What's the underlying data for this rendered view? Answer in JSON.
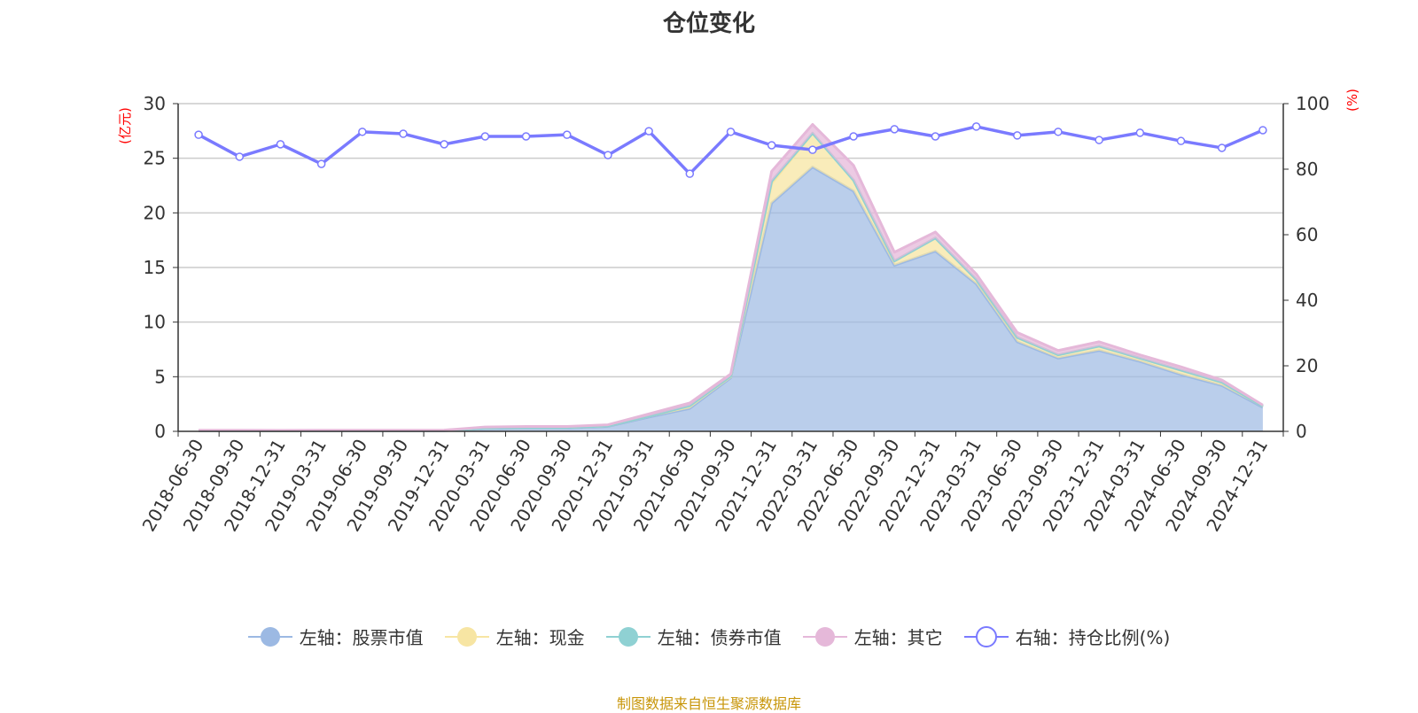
{
  "title": "仓位变化",
  "footer": "制图数据来自恒生聚源数据库",
  "colors": {
    "stock": "#9cb9e3",
    "cash": "#f7e5a3",
    "bond": "#8fd1d3",
    "other": "#e5b8d9",
    "ratio": "#7a7aff",
    "axis_name": "#ff0000"
  },
  "chart_data": {
    "type": "area",
    "title": "仓位变化",
    "categories": [
      "2018-06-30",
      "2018-09-30",
      "2018-12-31",
      "2019-03-31",
      "2019-06-30",
      "2019-09-30",
      "2019-12-31",
      "2020-03-31",
      "2020-06-30",
      "2020-09-30",
      "2020-12-31",
      "2021-03-31",
      "2021-06-30",
      "2021-09-30",
      "2021-12-31",
      "2022-03-31",
      "2022-06-30",
      "2022-09-30",
      "2022-12-31",
      "2023-03-31",
      "2023-06-30",
      "2023-09-30",
      "2023-12-31",
      "2024-03-31",
      "2024-06-30",
      "2024-09-30",
      "2024-12-31"
    ],
    "left_axis": {
      "name": "(亿元)",
      "ylim": [
        0,
        30
      ],
      "ticks": [
        0,
        5,
        10,
        15,
        20,
        25,
        30
      ]
    },
    "right_axis": {
      "name": "(%)",
      "ylim": [
        0,
        100
      ],
      "ticks": [
        0,
        20,
        40,
        60,
        80,
        100
      ]
    },
    "grid": true,
    "legend_position": "bottom",
    "series": [
      {
        "name": "左轴：股票市值",
        "axis": "left",
        "stack": true,
        "values": [
          0.05,
          0.05,
          0.04,
          0.05,
          0.05,
          0.05,
          0.06,
          0.25,
          0.3,
          0.3,
          0.45,
          1.3,
          2.1,
          4.9,
          20.9,
          24.2,
          22.0,
          15.2,
          16.5,
          13.5,
          8.2,
          6.7,
          7.4,
          6.4,
          5.2,
          4.2,
          2.2
        ]
      },
      {
        "name": "左轴：现金",
        "axis": "left",
        "stack": true,
        "values": [
          0.02,
          0.02,
          0.02,
          0.02,
          0.02,
          0.02,
          0.02,
          0.05,
          0.05,
          0.05,
          0.05,
          0.1,
          0.2,
          0.1,
          1.8,
          3.1,
          1.0,
          0.4,
          1.2,
          0.4,
          0.4,
          0.3,
          0.4,
          0.3,
          0.4,
          0.3,
          0.1
        ]
      },
      {
        "name": "左轴：债券市值",
        "axis": "left",
        "stack": true,
        "values": [
          0,
          0,
          0,
          0,
          0,
          0,
          0,
          0,
          0,
          0,
          0,
          0,
          0.05,
          0.05,
          0.2,
          0,
          0,
          0,
          0,
          0,
          0,
          0,
          0,
          0,
          0,
          0,
          0
        ]
      },
      {
        "name": "左轴：其它",
        "axis": "left",
        "stack": true,
        "values": [
          0.03,
          0.03,
          0.03,
          0.03,
          0.03,
          0.03,
          0.03,
          0.1,
          0.1,
          0.1,
          0.1,
          0.2,
          0.25,
          0.2,
          0.9,
          0.8,
          1.35,
          0.8,
          0.55,
          0.5,
          0.45,
          0.4,
          0.4,
          0.3,
          0.3,
          0.2,
          0.1
        ]
      },
      {
        "name": "右轴：持仓比例(%)",
        "axis": "right",
        "type": "line",
        "values": [
          90.5,
          83.8,
          87.6,
          81.6,
          91.4,
          90.8,
          87.6,
          90.0,
          90.0,
          90.5,
          84.3,
          91.6,
          78.6,
          91.4,
          87.3,
          85.9,
          90.0,
          92.2,
          90.0,
          93.0,
          90.3,
          91.4,
          88.9,
          91.1,
          88.6,
          86.5,
          91.9
        ]
      }
    ]
  }
}
